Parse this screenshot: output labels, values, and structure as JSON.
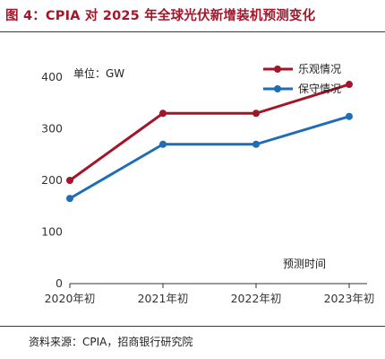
{
  "figure": {
    "title": "图 4：CPIA 对 2025 年全球光伏新增装机预测变化",
    "source": "资料来源：CPIA，招商银行研究院"
  },
  "chart_data": {
    "type": "line",
    "unit_label": "单位：GW",
    "annotation": "预测时间",
    "categories": [
      "2020年初",
      "2021年初",
      "2022年初",
      "2023年初"
    ],
    "ylim": [
      0,
      400
    ],
    "yticks": [
      0,
      100,
      200,
      300,
      400
    ],
    "grid": false,
    "legend_position": "top-right",
    "series": [
      {
        "name": "乐观情况",
        "color": "#a3162a",
        "values": [
          200,
          330,
          330,
          386
        ]
      },
      {
        "name": "保守情况",
        "color": "#1f6db5",
        "values": [
          165,
          270,
          270,
          324
        ]
      }
    ]
  }
}
